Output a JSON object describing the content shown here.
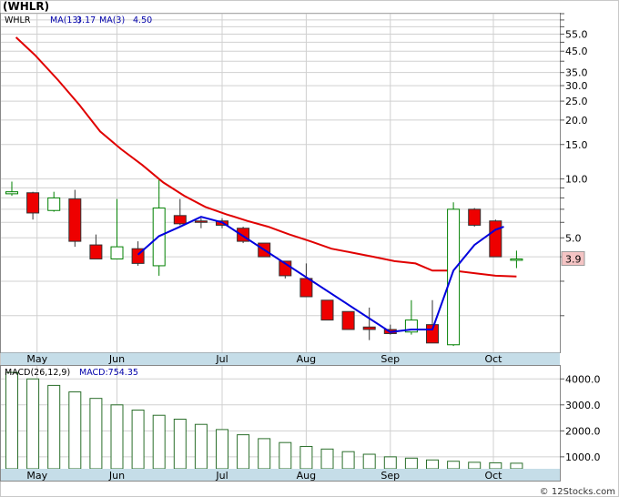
{
  "title": "(WHLR)",
  "watermark": "© 12Stocks.com",
  "colors": {
    "up_fill": "#ffffff",
    "down_fill": "#ee0000",
    "candle_outline_up": "#008000",
    "candle_outline_down": "#333333",
    "ma13": "#e00000",
    "ma3": "#0000dd",
    "macd_bar": "#2a6e2a",
    "axis_band": "#c5dde8",
    "grid": "#d0d0d0",
    "last_price_box": "#f4c4c4"
  },
  "chart_data": [
    {
      "type": "candlestick",
      "panel": "price",
      "legend": {
        "ticker": "WHLR",
        "ma13_label": "MA(13)",
        "ma13_value": "3.17",
        "ma3_label": "MA(3)",
        "ma3_value": "4.50"
      },
      "y_scale": "log",
      "ylim": [
        1.3,
        70
      ],
      "y_ticks": [
        {
          "value": 55,
          "label": "55.0"
        },
        {
          "value": 45,
          "label": "45.0"
        },
        {
          "value": 35,
          "label": "35.0"
        },
        {
          "value": 30,
          "label": "30.0"
        },
        {
          "value": 25,
          "label": "25.0"
        },
        {
          "value": 20,
          "label": "20.0"
        },
        {
          "value": 15,
          "label": "15.0"
        },
        {
          "value": 10,
          "label": "10.0"
        },
        {
          "value": 5,
          "label": "5.0"
        }
      ],
      "extra_gridlines": [
        70,
        65,
        60,
        50,
        40,
        9,
        8,
        7,
        6,
        4,
        3,
        2
      ],
      "x_labels": [
        {
          "label": "May",
          "index": 1.2
        },
        {
          "label": "Jun",
          "index": 5.0
        },
        {
          "label": "Jul",
          "index": 10.0
        },
        {
          "label": "Aug",
          "index": 14.0
        },
        {
          "label": "Sep",
          "index": 18.0
        },
        {
          "label": "Oct",
          "index": 22.9
        }
      ],
      "candles": [
        {
          "o": 8.4,
          "h": 9.7,
          "l": 8.2,
          "c": 8.6
        },
        {
          "o": 8.5,
          "h": 8.6,
          "l": 6.2,
          "c": 6.7
        },
        {
          "o": 6.9,
          "h": 8.6,
          "l": 6.8,
          "c": 8.0
        },
        {
          "o": 7.9,
          "h": 8.8,
          "l": 4.5,
          "c": 4.8
        },
        {
          "o": 4.6,
          "h": 5.2,
          "l": 3.9,
          "c": 3.9
        },
        {
          "o": 3.9,
          "h": 7.9,
          "l": 3.9,
          "c": 4.5
        },
        {
          "o": 4.4,
          "h": 4.8,
          "l": 3.6,
          "c": 3.7
        },
        {
          "o": 3.6,
          "h": 9.9,
          "l": 3.2,
          "c": 7.1
        },
        {
          "o": 6.5,
          "h": 7.9,
          "l": 5.8,
          "c": 5.9
        },
        {
          "o": 6.1,
          "h": 6.3,
          "l": 5.6,
          "c": 6.0
        },
        {
          "o": 6.1,
          "h": 6.3,
          "l": 5.6,
          "c": 5.8
        },
        {
          "o": 5.6,
          "h": 5.7,
          "l": 4.7,
          "c": 4.8
        },
        {
          "o": 4.7,
          "h": 4.7,
          "l": 4.0,
          "c": 4.0
        },
        {
          "o": 3.8,
          "h": 3.8,
          "l": 3.1,
          "c": 3.2
        },
        {
          "o": 3.1,
          "h": 3.7,
          "l": 2.5,
          "c": 2.5
        },
        {
          "o": 2.4,
          "h": 2.4,
          "l": 1.9,
          "c": 1.9
        },
        {
          "o": 2.1,
          "h": 2.1,
          "l": 1.7,
          "c": 1.7
        },
        {
          "o": 1.75,
          "h": 2.2,
          "l": 1.5,
          "c": 1.7
        },
        {
          "o": 1.7,
          "h": 1.8,
          "l": 1.6,
          "c": 1.62
        },
        {
          "o": 1.65,
          "h": 2.4,
          "l": 1.6,
          "c": 1.9
        },
        {
          "o": 1.8,
          "h": 2.4,
          "l": 1.45,
          "c": 1.45
        },
        {
          "o": 1.42,
          "h": 7.6,
          "l": 1.4,
          "c": 7.0
        },
        {
          "o": 7.0,
          "h": 7.1,
          "l": 5.7,
          "c": 5.8
        },
        {
          "o": 6.1,
          "h": 6.2,
          "l": 4.0,
          "c": 4.0
        },
        {
          "o": 3.9,
          "h": 4.3,
          "l": 3.5,
          "c": 3.9
        }
      ],
      "ma13": [
        {
          "i": 0.2,
          "v": 53
        },
        {
          "i": 1.1,
          "v": 43
        },
        {
          "i": 2.2,
          "v": 32
        },
        {
          "i": 3.2,
          "v": 24
        },
        {
          "i": 4.2,
          "v": 17.5
        },
        {
          "i": 5.2,
          "v": 14.2
        },
        {
          "i": 6.2,
          "v": 11.8
        },
        {
          "i": 7.2,
          "v": 9.6
        },
        {
          "i": 8.2,
          "v": 8.2
        },
        {
          "i": 9.2,
          "v": 7.2
        },
        {
          "i": 10.2,
          "v": 6.6
        },
        {
          "i": 11.2,
          "v": 6.1
        },
        {
          "i": 12.2,
          "v": 5.7
        },
        {
          "i": 13.2,
          "v": 5.2
        },
        {
          "i": 14.2,
          "v": 4.8
        },
        {
          "i": 15.2,
          "v": 4.4
        },
        {
          "i": 16.2,
          "v": 4.2
        },
        {
          "i": 17.2,
          "v": 4.0
        },
        {
          "i": 18.2,
          "v": 3.8
        },
        {
          "i": 19.2,
          "v": 3.7
        },
        {
          "i": 20.0,
          "v": 3.4
        },
        {
          "i": 21.0,
          "v": 3.4
        },
        {
          "i": 22.0,
          "v": 3.3
        },
        {
          "i": 23.0,
          "v": 3.2
        },
        {
          "i": 24.0,
          "v": 3.17
        }
      ],
      "ma3": [
        {
          "i": 6.0,
          "v": 4.1
        },
        {
          "i": 7.0,
          "v": 5.1
        },
        {
          "i": 8.0,
          "v": 5.7
        },
        {
          "i": 9.0,
          "v": 6.4
        },
        {
          "i": 10.0,
          "v": 6.0
        },
        {
          "i": 18.0,
          "v": 1.65
        },
        {
          "i": 19.0,
          "v": 1.7
        },
        {
          "i": 20.0,
          "v": 1.7
        },
        {
          "i": 21.0,
          "v": 3.4
        },
        {
          "i": 22.0,
          "v": 4.6
        },
        {
          "i": 23.0,
          "v": 5.5
        },
        {
          "i": 23.4,
          "v": 5.7
        }
      ],
      "last_price": {
        "value": 3.9,
        "label": "3.9"
      }
    },
    {
      "type": "bar",
      "panel": "macd",
      "legend": {
        "macd_params": "MACD(26,12,9)",
        "macd_label": "MACD:754.35"
      },
      "ylim": [
        540,
        4500
      ],
      "y_ticks": [
        {
          "value": 4000,
          "label": "4000.0"
        },
        {
          "value": 3000,
          "label": "3000.0"
        },
        {
          "value": 2000,
          "label": "2000.0"
        },
        {
          "value": 1000,
          "label": "1000.0"
        }
      ],
      "x_labels": [
        {
          "label": "May",
          "index": 1.2
        },
        {
          "label": "Jun",
          "index": 5.0
        },
        {
          "label": "Jul",
          "index": 10.0
        },
        {
          "label": "Aug",
          "index": 14.0
        },
        {
          "label": "Sep",
          "index": 18.0
        },
        {
          "label": "Oct",
          "index": 22.9
        }
      ],
      "values": [
        4250,
        4000,
        3750,
        3500,
        3250,
        3000,
        2800,
        2600,
        2450,
        2250,
        2050,
        1850,
        1700,
        1550,
        1400,
        1300,
        1200,
        1100,
        1000,
        950,
        880,
        830,
        790,
        770,
        754.35
      ]
    }
  ]
}
